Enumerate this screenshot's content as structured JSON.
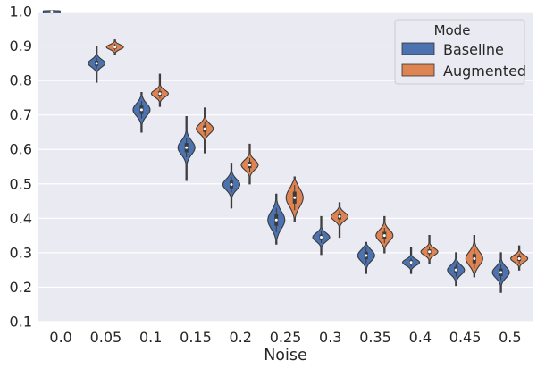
{
  "chart_data": {
    "type": "violin",
    "title": "",
    "xlabel": "Noise",
    "ylabel": "",
    "ylim": [
      0.1,
      1.0
    ],
    "yticks": [
      "0.1",
      "0.2",
      "0.3",
      "0.4",
      "0.5",
      "0.6",
      "0.7",
      "0.8",
      "0.9",
      "1.0"
    ],
    "grid": true,
    "categories": [
      "0.0",
      "0.05",
      "0.1",
      "0.15",
      "0.2",
      "0.25",
      "0.3",
      "0.35",
      "0.4",
      "0.45",
      "0.5"
    ],
    "legend": {
      "title": "Mode",
      "placement": "top-right"
    },
    "series": [
      {
        "name": "Baseline",
        "color": "#4c72b0",
        "medians": [
          1.0,
          0.85,
          0.715,
          0.605,
          0.498,
          0.395,
          0.345,
          0.292,
          0.272,
          0.25,
          0.243
        ],
        "mins": [
          0.996,
          0.795,
          0.65,
          0.51,
          0.43,
          0.325,
          0.295,
          0.24,
          0.24,
          0.205,
          0.185
        ],
        "maxs": [
          1.003,
          0.9,
          0.765,
          0.695,
          0.56,
          0.47,
          0.405,
          0.33,
          0.315,
          0.3,
          0.3
        ],
        "spread": [
          0.012,
          0.011,
          0.018,
          0.02,
          0.016,
          0.025,
          0.012,
          0.016,
          0.009,
          0.014,
          0.016
        ]
      },
      {
        "name": "Augmented",
        "color": "#dd8452",
        "medians": [
          null,
          0.897,
          0.762,
          0.66,
          0.555,
          0.46,
          0.405,
          0.35,
          0.303,
          0.283,
          0.283
        ],
        "mins": [
          null,
          0.876,
          0.725,
          0.59,
          0.5,
          0.39,
          0.345,
          0.3,
          0.27,
          0.23,
          0.25
        ],
        "maxs": [
          null,
          0.918,
          0.818,
          0.72,
          0.615,
          0.52,
          0.445,
          0.405,
          0.35,
          0.35,
          0.32
        ],
        "spread": [
          null,
          0.007,
          0.01,
          0.014,
          0.014,
          0.026,
          0.012,
          0.016,
          0.01,
          0.02,
          0.01
        ]
      }
    ]
  }
}
